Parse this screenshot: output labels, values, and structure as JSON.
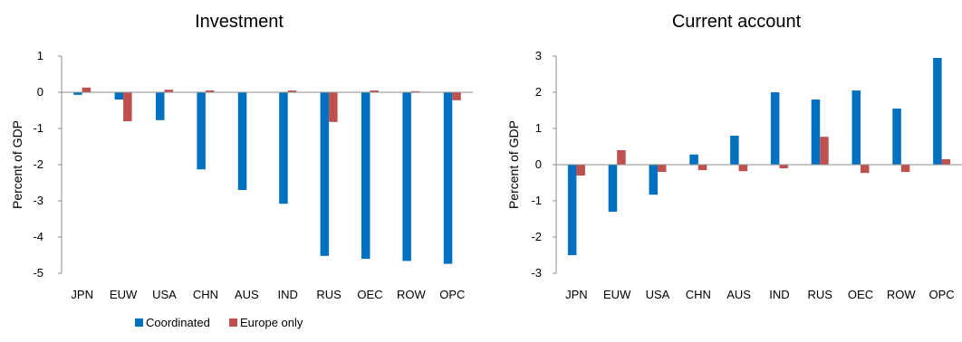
{
  "legend": {
    "items": [
      {
        "label": "Coordinated",
        "color": "#0070C0"
      },
      {
        "label": "Europe only",
        "color": "#C0504D"
      }
    ]
  },
  "chart_data": [
    {
      "type": "bar",
      "title": "Investment",
      "xlabel": "",
      "ylabel": "Percent of GDP",
      "ylim": [
        -5,
        1
      ],
      "yticks": [
        1,
        0,
        -1,
        -2,
        -3,
        -4,
        -5
      ],
      "categories": [
        "JPN",
        "EUW",
        "USA",
        "CHN",
        "AUS",
        "IND",
        "RUS",
        "OEC",
        "ROW",
        "OPC"
      ],
      "series": [
        {
          "name": "Coordinated",
          "color": "#0070C0",
          "values": [
            -0.07,
            -0.2,
            -0.77,
            -2.13,
            -2.7,
            -3.08,
            -4.52,
            -4.6,
            -4.66,
            -4.74
          ]
        },
        {
          "name": "Europe only",
          "color": "#C0504D",
          "values": [
            0.13,
            -0.8,
            0.07,
            0.05,
            0.0,
            0.05,
            -0.82,
            0.05,
            0.03,
            -0.22
          ]
        }
      ],
      "grid": false,
      "legend_position": "bottom"
    },
    {
      "type": "bar",
      "title": "Current account",
      "xlabel": "",
      "ylabel": "Percent of GDP",
      "ylim": [
        -3,
        3
      ],
      "yticks": [
        3,
        2,
        1,
        0,
        -1,
        -2,
        -3
      ],
      "categories": [
        "JPN",
        "EUW",
        "USA",
        "CHN",
        "AUS",
        "IND",
        "RUS",
        "OEC",
        "ROW",
        "OPC"
      ],
      "series": [
        {
          "name": "Coordinated",
          "color": "#0070C0",
          "values": [
            -2.5,
            -1.3,
            -0.83,
            0.28,
            0.8,
            2.0,
            1.8,
            2.05,
            1.55,
            2.95
          ]
        },
        {
          "name": "Europe only",
          "color": "#C0504D",
          "values": [
            -0.3,
            0.4,
            -0.2,
            -0.15,
            -0.18,
            -0.1,
            0.77,
            -0.23,
            -0.2,
            0.15
          ]
        }
      ],
      "grid": false
    }
  ]
}
